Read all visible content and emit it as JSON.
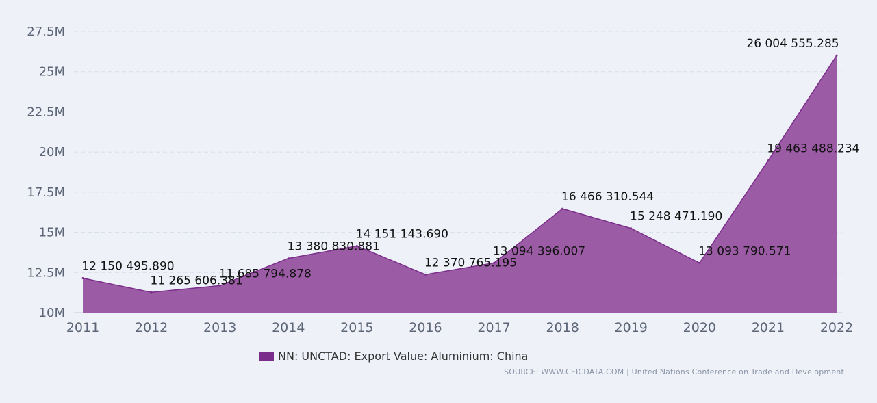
{
  "chart_data": {
    "type": "area",
    "x": [
      "2011",
      "2012",
      "2013",
      "2014",
      "2015",
      "2016",
      "2017",
      "2018",
      "2019",
      "2020",
      "2021",
      "2022"
    ],
    "series": [
      {
        "name": "NN: UNCTAD: Export Value: Aluminium: China",
        "values": [
          12150495.89,
          11265606.381,
          11685794.878,
          13380830.881,
          14151143.69,
          12370765.195,
          13094396.007,
          16466310.544,
          15248471.19,
          13093790.571,
          19463488.234,
          26004555.285
        ],
        "labels": [
          "12 150 495.890",
          "11 265 606.381",
          "11 685 794.878",
          "13 380 830.881",
          "14 151 143.690",
          "12 370 765.195",
          "13 094 396.007",
          "16 466 310.544",
          "15 248 471.190",
          "13 093 790.571",
          "19 463 488.234",
          "26 004 555.285"
        ],
        "color": "#7b2d8b"
      }
    ],
    "ylim": [
      10000000,
      27500000
    ],
    "yticks": [
      10000000,
      12500000,
      15000000,
      17500000,
      20000000,
      22500000,
      25000000,
      27500000
    ],
    "ytick_labels": [
      "10M",
      "12.5M",
      "15M",
      "17.5M",
      "20M",
      "22.5M",
      "25M",
      "27.5M"
    ],
    "grid": true,
    "legend_position": "bottom-center",
    "fill_color": "#9b5ca5",
    "line_color": "#7b2d8b"
  },
  "legend": {
    "label": "NN: UNCTAD: Export Value: Aluminium: China",
    "color": "#7b2d8b"
  },
  "source": "SOURCE: WWW.CEICDATA.COM | United Nations Conference on Trade and Development"
}
